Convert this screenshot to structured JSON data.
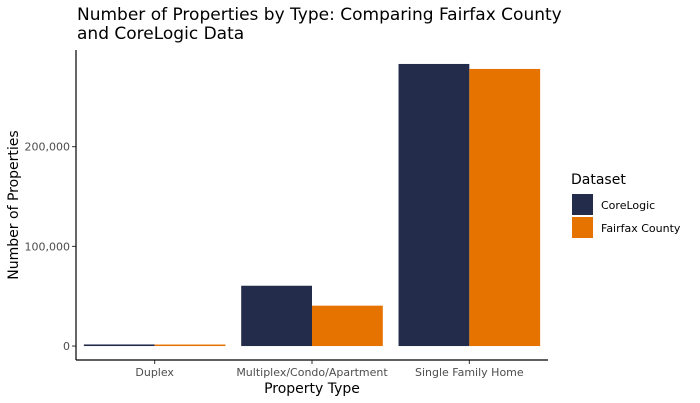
{
  "chart_data": {
    "type": "bar",
    "title_lines": [
      "Number of Properties by Type: Comparing Fairfax County",
      "and CoreLogic Data"
    ],
    "xlabel": "Property Type",
    "ylabel": "Number of Properties",
    "categories": [
      "Duplex",
      "Multiplex/Condo/Apartment",
      "Single Family Home"
    ],
    "series": [
      {
        "name": "CoreLogic",
        "color": "#232c4b",
        "values": [
          1600,
          60500,
          283000
        ]
      },
      {
        "name": "Fairfax County",
        "color": "#e67200",
        "values": [
          1300,
          40500,
          278000
        ]
      }
    ],
    "ylim": [
      -14000,
      297000
    ],
    "yticks": [
      0,
      100000,
      200000
    ],
    "ytick_labels": [
      "0",
      "100,000",
      "200,000"
    ],
    "grid": false,
    "legend": {
      "title": "Dataset",
      "position": "right"
    }
  }
}
